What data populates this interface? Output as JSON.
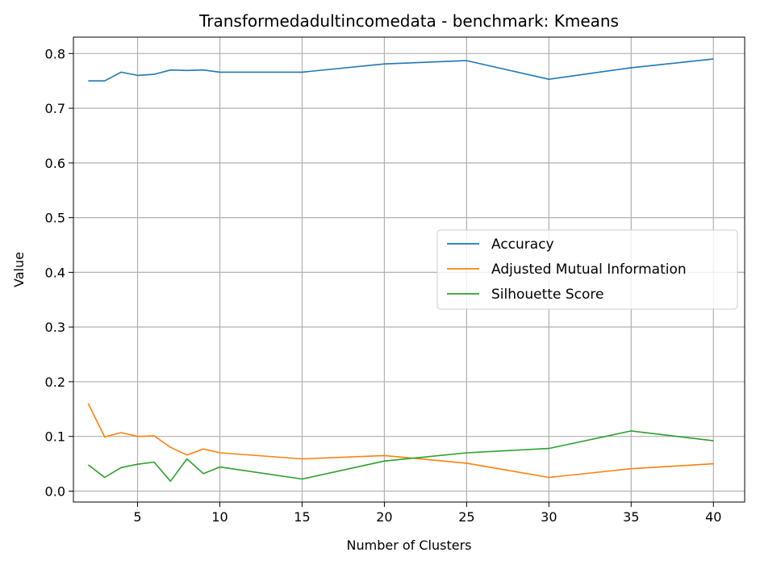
{
  "chart_data": {
    "type": "line",
    "title": "Transformedadultincomedata - benchmark: Kmeans",
    "xlabel": "Number of Clusters",
    "ylabel": "Value",
    "xlim": [
      1.1,
      41.9
    ],
    "ylim": [
      -0.02,
      0.83
    ],
    "x_ticks": [
      5,
      10,
      15,
      20,
      25,
      30,
      35,
      40
    ],
    "y_ticks": [
      0.0,
      0.1,
      0.2,
      0.3,
      0.4,
      0.5,
      0.6,
      0.7,
      0.8
    ],
    "grid": true,
    "legend_position": "center-right",
    "x": [
      2,
      3,
      4,
      5,
      6,
      7,
      8,
      9,
      10,
      15,
      20,
      25,
      30,
      35,
      40
    ],
    "series": [
      {
        "name": "Accuracy",
        "color": "#1f77b4",
        "values": [
          0.75,
          0.75,
          0.766,
          0.76,
          0.762,
          0.77,
          0.769,
          0.77,
          0.766,
          0.766,
          0.781,
          0.787,
          0.753,
          0.774,
          0.79
        ]
      },
      {
        "name": "Adjusted Mutual Information",
        "color": "#ff7f0e",
        "values": [
          0.16,
          0.099,
          0.107,
          0.1,
          0.101,
          0.08,
          0.066,
          0.077,
          0.07,
          0.059,
          0.065,
          0.051,
          0.025,
          0.041,
          0.05
        ]
      },
      {
        "name": "Silhouette Score",
        "color": "#2ca02c",
        "values": [
          0.048,
          0.025,
          0.043,
          0.049,
          0.053,
          0.018,
          0.059,
          0.032,
          0.044,
          0.022,
          0.055,
          0.07,
          0.078,
          0.11,
          0.092
        ]
      }
    ]
  }
}
